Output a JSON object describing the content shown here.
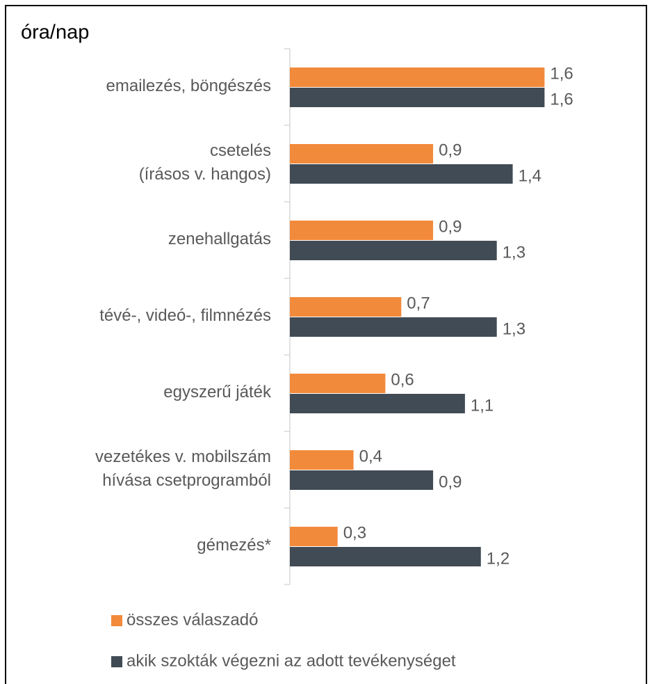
{
  "chart_data": {
    "type": "bar",
    "orientation": "horizontal",
    "title": "óra/nap",
    "categories": [
      [
        "emailezés, böngészés"
      ],
      [
        "csetelés",
        "(írásos v. hangos)"
      ],
      [
        "zenehallgatás"
      ],
      [
        "tévé-, videó-, filmnézés"
      ],
      [
        "egyszerű játék"
      ],
      [
        "vezetékes v. mobilszám",
        "hívása csetprogramból"
      ],
      [
        "gémezés*"
      ]
    ],
    "series": [
      {
        "name": "összes válaszadó",
        "color": "#f28a3b",
        "values": [
          1.6,
          0.9,
          0.9,
          0.7,
          0.6,
          0.4,
          0.3
        ],
        "value_labels": [
          "1,6",
          "0,9",
          "0,9",
          "0,7",
          "0,6",
          "0,4",
          "0,3"
        ]
      },
      {
        "name": "akik szokták végezni az adott tevékenységet",
        "color": "#414b55",
        "values": [
          1.6,
          1.4,
          1.3,
          1.3,
          1.1,
          0.9,
          1.2
        ],
        "value_labels": [
          "1,6",
          "1,4",
          "1,3",
          "1,3",
          "1,1",
          "0,9",
          "1,2"
        ]
      }
    ],
    "legend": "bottom"
  }
}
